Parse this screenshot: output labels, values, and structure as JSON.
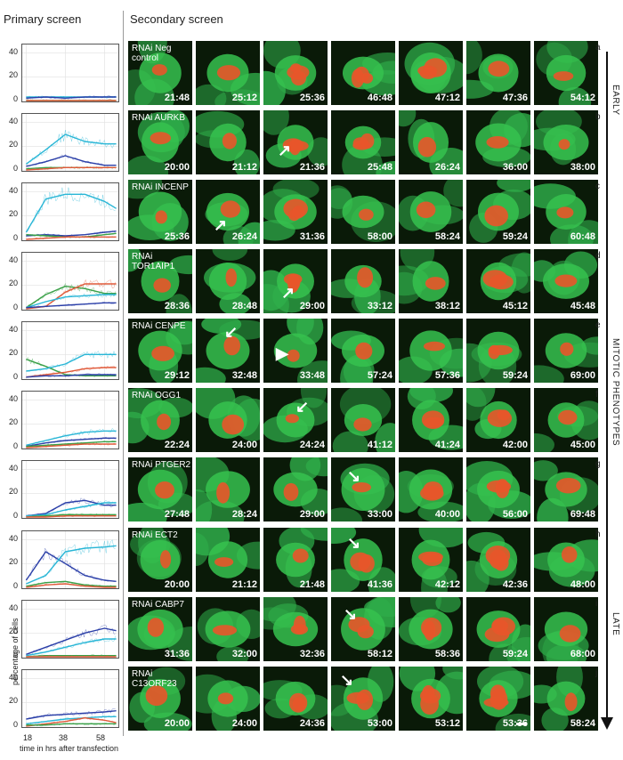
{
  "headers": {
    "primary": "Primary screen",
    "secondary": "Secondary screen"
  },
  "axis": {
    "y_ticks": [
      "40",
      "20",
      "0"
    ],
    "x_ticks": [
      "18",
      "38",
      "58"
    ],
    "ylabel": "percentage of cells",
    "xlabel": "time in hrs after transfection"
  },
  "side_labels": {
    "early": "EARLY",
    "mitotic": "MITOTIC PHENOTYPES",
    "late": "LATE"
  },
  "colors": {
    "cyan": "#29b6d6",
    "blue": "#2b3fa8",
    "green": "#3aa048",
    "red": "#e05a3a",
    "cell_green": "#2fae4a",
    "nucleus": "#e8552a"
  },
  "rows": [
    {
      "letter": "a",
      "label": "RNAi Neg control",
      "times": [
        "21:48",
        "25:12",
        "25:36",
        "46:48",
        "47:12",
        "47:36",
        "54:12"
      ]
    },
    {
      "letter": "b",
      "label": "RNAi AURKB",
      "times": [
        "20:00",
        "21:12",
        "21:36",
        "25:48",
        "26:24",
        "36:00",
        "38:00"
      ]
    },
    {
      "letter": "c",
      "label": "RNAi INCENP",
      "times": [
        "25:36",
        "26:24",
        "31:36",
        "58:00",
        "58:24",
        "59:24",
        "60:48"
      ]
    },
    {
      "letter": "d",
      "label": "RNAi TOR1AIP1",
      "times": [
        "28:36",
        "28:48",
        "29:00",
        "33:12",
        "38:12",
        "45:12",
        "45:48"
      ]
    },
    {
      "letter": "e",
      "label": "RNAi CENPE",
      "times": [
        "29:12",
        "32:48",
        "33:48",
        "57:24",
        "57:36",
        "59:24",
        "69:00"
      ]
    },
    {
      "letter": "f",
      "label": "RNAi OGG1",
      "times": [
        "22:24",
        "24:00",
        "24:24",
        "41:12",
        "41:24",
        "42:00",
        "45:00"
      ]
    },
    {
      "letter": "g",
      "label": "RNAi PTGER2",
      "times": [
        "27:48",
        "28:24",
        "29:00",
        "33:00",
        "40:00",
        "56:00",
        "69:48"
      ]
    },
    {
      "letter": "h",
      "label": "RNAi ECT2",
      "times": [
        "20:00",
        "21:12",
        "21:48",
        "41:36",
        "42:12",
        "42:36",
        "48:00"
      ]
    },
    {
      "letter": "i",
      "label": "RNAi CABP7",
      "times": [
        "31:36",
        "32:00",
        "32:36",
        "58:12",
        "58:36",
        "59:24",
        "68:00"
      ]
    },
    {
      "letter": "j",
      "label": "RNAi C13ORF23",
      "times": [
        "20:00",
        "24:00",
        "24:36",
        "53:00",
        "53:12",
        "53:36",
        "58:24"
      ]
    }
  ],
  "chart_data": {
    "type": "line",
    "x": [
      18,
      28,
      38,
      48,
      58,
      64
    ],
    "ylim": [
      0,
      45
    ],
    "xlabel": "time in hrs after transfection",
    "ylabel": "percentage of cells",
    "panels": [
      {
        "series": [
          {
            "color": "#29b6d6",
            "values": [
              3,
              3,
              3,
              3,
              3,
              3
            ]
          },
          {
            "color": "#2b3fa8",
            "values": [
              2,
              3,
              2,
              3,
              3,
              3
            ]
          },
          {
            "color": "#3aa048",
            "values": [
              0,
              0,
              0,
              0,
              0,
              0
            ]
          },
          {
            "color": "#e05a3a",
            "values": [
              0,
              0,
              0,
              0,
              0,
              0
            ]
          }
        ]
      },
      {
        "series": [
          {
            "color": "#29b6d6",
            "values": [
              5,
              17,
              30,
              24,
              22,
              22
            ]
          },
          {
            "color": "#2b3fa8",
            "values": [
              3,
              7,
              12,
              7,
              4,
              4
            ]
          },
          {
            "color": "#3aa048",
            "values": [
              1,
              2,
              2,
              2,
              2,
              2
            ]
          },
          {
            "color": "#e05a3a",
            "values": [
              0,
              1,
              2,
              2,
              2,
              2
            ]
          }
        ]
      },
      {
        "series": [
          {
            "color": "#29b6d6",
            "values": [
              6,
              34,
              38,
              38,
              32,
              26
            ]
          },
          {
            "color": "#2b3fa8",
            "values": [
              3,
              4,
              3,
              4,
              6,
              7
            ]
          },
          {
            "color": "#3aa048",
            "values": [
              4,
              3,
              2,
              2,
              4,
              5
            ]
          },
          {
            "color": "#e05a3a",
            "values": [
              0,
              1,
              2,
              2,
              2,
              2
            ]
          }
        ]
      },
      {
        "series": [
          {
            "color": "#3aa048",
            "values": [
              1,
              12,
              19,
              17,
              13,
              13
            ]
          },
          {
            "color": "#e05a3a",
            "values": [
              0,
              2,
              14,
              21,
              21,
              21
            ]
          },
          {
            "color": "#29b6d6",
            "values": [
              1,
              6,
              10,
              11,
              12,
              12
            ]
          },
          {
            "color": "#2b3fa8",
            "values": [
              1,
              2,
              3,
              4,
              5,
              5
            ]
          }
        ]
      },
      {
        "series": [
          {
            "color": "#3aa048",
            "values": [
              16,
              10,
              3,
              2,
              2,
              2
            ]
          },
          {
            "color": "#29b6d6",
            "values": [
              6,
              8,
              12,
              20,
              20,
              20
            ]
          },
          {
            "color": "#e05a3a",
            "values": [
              1,
              3,
              5,
              8,
              9,
              9
            ]
          },
          {
            "color": "#2b3fa8",
            "values": [
              1,
              2,
              2,
              3,
              3,
              3
            ]
          }
        ]
      },
      {
        "series": [
          {
            "color": "#29b6d6",
            "values": [
              2,
              6,
              10,
              13,
              14,
              14
            ]
          },
          {
            "color": "#2b3fa8",
            "values": [
              1,
              4,
              6,
              7,
              8,
              8
            ]
          },
          {
            "color": "#3aa048",
            "values": [
              1,
              2,
              3,
              4,
              5,
              5
            ]
          },
          {
            "color": "#e05a3a",
            "values": [
              0,
              1,
              2,
              3,
              3,
              3
            ]
          }
        ]
      },
      {
        "series": [
          {
            "color": "#2b3fa8",
            "values": [
              1,
              3,
              12,
              14,
              10,
              10
            ]
          },
          {
            "color": "#29b6d6",
            "values": [
              1,
              2,
              6,
              9,
              12,
              12
            ]
          },
          {
            "color": "#3aa048",
            "values": [
              0,
              1,
              2,
              2,
              2,
              2
            ]
          },
          {
            "color": "#e05a3a",
            "values": [
              0,
              0,
              1,
              1,
              1,
              1
            ]
          }
        ]
      },
      {
        "series": [
          {
            "color": "#2b3fa8",
            "values": [
              6,
              30,
              20,
              10,
              6,
              5
            ]
          },
          {
            "color": "#29b6d6",
            "values": [
              3,
              10,
              30,
              33,
              34,
              35
            ]
          },
          {
            "color": "#3aa048",
            "values": [
              1,
              4,
              5,
              2,
              1,
              1
            ]
          },
          {
            "color": "#e05a3a",
            "values": [
              0,
              2,
              3,
              1,
              0,
              0
            ]
          }
        ]
      },
      {
        "series": [
          {
            "color": "#2b3fa8",
            "values": [
              2,
              8,
              14,
              20,
              24,
              22
            ]
          },
          {
            "color": "#29b6d6",
            "values": [
              1,
              4,
              8,
              12,
              15,
              15
            ]
          },
          {
            "color": "#3aa048",
            "values": [
              0,
              1,
              1,
              1,
              1,
              1
            ]
          },
          {
            "color": "#e05a3a",
            "values": [
              0,
              0,
              0,
              0,
              0,
              0
            ]
          }
        ]
      },
      {
        "series": [
          {
            "color": "#2b3fa8",
            "values": [
              6,
              9,
              10,
              11,
              12,
              13
            ]
          },
          {
            "color": "#29b6d6",
            "values": [
              2,
              4,
              6,
              7,
              8,
              8
            ]
          },
          {
            "color": "#e05a3a",
            "values": [
              0,
              2,
              4,
              7,
              5,
              3
            ]
          },
          {
            "color": "#3aa048",
            "values": [
              1,
              1,
              2,
              2,
              2,
              2
            ]
          }
        ]
      }
    ]
  }
}
